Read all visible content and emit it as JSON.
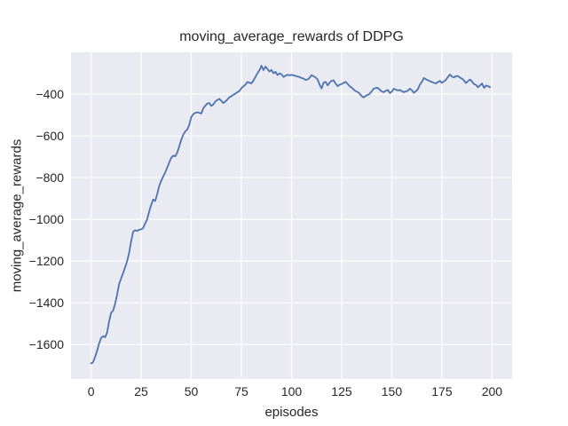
{
  "chart_data": {
    "type": "line",
    "title": "moving_average_rewards of DDPG",
    "xlabel": "episodes",
    "ylabel": "moving_average_rewards",
    "xlim": [
      -10,
      210
    ],
    "ylim": [
      -1765,
      -200
    ],
    "grid": true,
    "legend": null,
    "xticks": {
      "values": [
        0,
        25,
        50,
        75,
        100,
        125,
        150,
        175,
        200
      ],
      "labels": [
        "0",
        "25",
        "50",
        "75",
        "100",
        "125",
        "150",
        "175",
        "200"
      ]
    },
    "yticks": {
      "values": [
        -400,
        -600,
        -800,
        -1000,
        -1200,
        -1400,
        -1600
      ],
      "labels": [
        "−400",
        "−600",
        "−800",
        "−1000",
        "−1200",
        "−1400",
        "−1600"
      ]
    },
    "colors": {
      "line": "#4C72B0",
      "plot_bg": "#EAEAF2",
      "grid": "#FFFFFF",
      "text": "#262626",
      "figure_bg": "#FFFFFF"
    },
    "series": {
      "x_start": 0,
      "x_step": 1,
      "y": [
        -1690,
        -1685,
        -1660,
        -1630,
        -1596,
        -1568,
        -1560,
        -1565,
        -1542,
        -1490,
        -1448,
        -1438,
        -1405,
        -1360,
        -1310,
        -1283,
        -1258,
        -1230,
        -1200,
        -1160,
        -1105,
        -1060,
        -1052,
        -1056,
        -1050,
        -1048,
        -1042,
        -1020,
        -1000,
        -962,
        -930,
        -905,
        -912,
        -880,
        -840,
        -815,
        -795,
        -775,
        -752,
        -728,
        -705,
        -695,
        -698,
        -680,
        -650,
        -618,
        -595,
        -578,
        -570,
        -548,
        -510,
        -496,
        -490,
        -487,
        -490,
        -493,
        -468,
        -455,
        -445,
        -443,
        -457,
        -450,
        -435,
        -429,
        -423,
        -432,
        -443,
        -435,
        -426,
        -415,
        -410,
        -403,
        -398,
        -391,
        -385,
        -372,
        -363,
        -355,
        -342,
        -345,
        -349,
        -335,
        -318,
        -300,
        -285,
        -264,
        -285,
        -268,
        -280,
        -292,
        -284,
        -300,
        -293,
        -309,
        -301,
        -305,
        -318,
        -312,
        -307,
        -310,
        -308,
        -310,
        -313,
        -316,
        -318,
        -323,
        -326,
        -332,
        -330,
        -322,
        -309,
        -315,
        -320,
        -330,
        -355,
        -373,
        -345,
        -341,
        -358,
        -345,
        -336,
        -334,
        -350,
        -362,
        -355,
        -352,
        -346,
        -341,
        -352,
        -362,
        -369,
        -378,
        -386,
        -390,
        -398,
        -410,
        -416,
        -408,
        -404,
        -398,
        -386,
        -374,
        -371,
        -370,
        -379,
        -388,
        -391,
        -384,
        -380,
        -395,
        -388,
        -374,
        -378,
        -383,
        -380,
        -386,
        -391,
        -387,
        -384,
        -374,
        -381,
        -394,
        -386,
        -377,
        -355,
        -342,
        -323,
        -329,
        -334,
        -338,
        -342,
        -346,
        -349,
        -342,
        -337,
        -346,
        -339,
        -332,
        -318,
        -306,
        -316,
        -320,
        -314,
        -313,
        -321,
        -326,
        -335,
        -347,
        -338,
        -330,
        -340,
        -352,
        -356,
        -367,
        -358,
        -349,
        -370,
        -359,
        -362,
        -367
      ]
    }
  }
}
